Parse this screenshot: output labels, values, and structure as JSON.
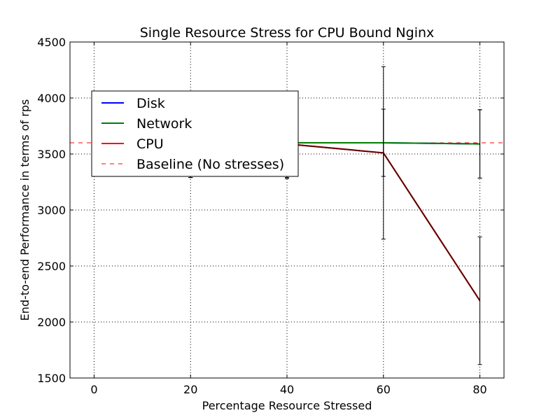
{
  "chart_data": {
    "type": "line",
    "title": "Single Resource Stress for CPU Bound Nginx",
    "xlabel": "Percentage Resource Stressed",
    "ylabel": "End-to-end Performance in terms of rps",
    "xlim": [
      -5,
      85
    ],
    "ylim": [
      1500,
      4500
    ],
    "xticks": [
      0,
      20,
      40,
      60,
      80
    ],
    "yticks": [
      1500,
      2000,
      2500,
      3000,
      3500,
      4000,
      4500
    ],
    "grid": true,
    "legend_position": "upper-left",
    "x": [
      0,
      20,
      40,
      60,
      80
    ],
    "series": [
      {
        "name": "Disk",
        "color": "#0000ff",
        "values": [
          3600,
          3600,
          3600,
          3600,
          3590
        ],
        "errors": [
          140,
          310,
          310,
          300,
          305
        ]
      },
      {
        "name": "Network",
        "color": "#008000",
        "values": [
          3600,
          3600,
          3600,
          3600,
          3590
        ],
        "errors": [
          140,
          310,
          310,
          300,
          305
        ]
      },
      {
        "name": "CPU",
        "color": "#ff0000",
        "values": [
          3600,
          3600,
          3590,
          3510,
          2190
        ],
        "errors": [
          140,
          310,
          310,
          770,
          570
        ]
      }
    ],
    "baseline": {
      "name": "Baseline (No stresses)",
      "color": "#ff0000",
      "value": 3600
    }
  }
}
